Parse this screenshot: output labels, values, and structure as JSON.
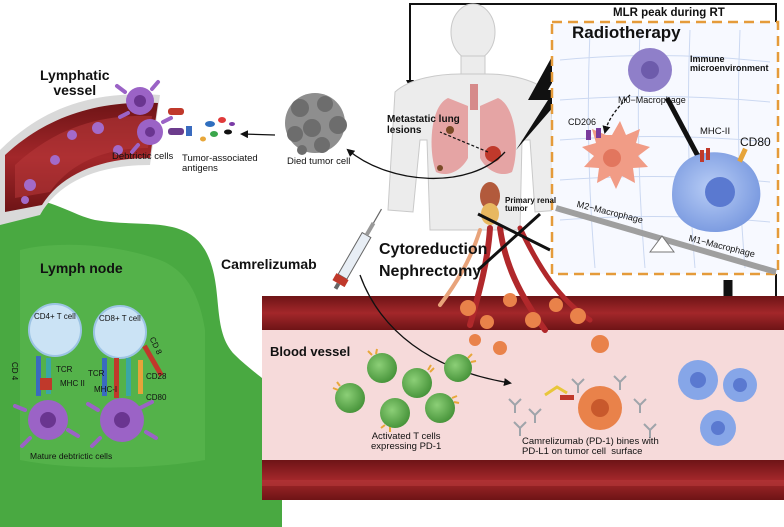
{
  "title_labels": {
    "mlr_peak": "MLR peak during RT",
    "radiotherapy": "Radiotherapy",
    "immune_microenvironment": "Immune\nmicroenvironment",
    "lymphatic_vessel": "Lymphatic\nvessel",
    "lymph_node": "Lymph node",
    "blood_vessel": "Blood vessel",
    "camrelizumab": "Camrelizumab",
    "cytoreduction": "Cytoreduction",
    "nephrectomy": "Nephrectomy"
  },
  "macrophages": {
    "m0": "M0−Macrophage",
    "m2": "M2−Macrophage",
    "m1": "M1−Macrophage",
    "cd206": "CD206",
    "mhc_ii": "MHC-II",
    "cd80": "CD80"
  },
  "body_labels": {
    "metastatic": "Metastatic lung\nlesions",
    "primary_renal": "Primary renal\ntumor"
  },
  "flow_labels": {
    "died_tumor_cell": "Died tumor cell",
    "tumor_antigens": "Tumor-associated\nantigens",
    "dendritic_cells": "Debtrictic cells"
  },
  "lymph_node_labels": {
    "cd4_t_cell": "CD4+ T cell",
    "cd8_t_cell": "CD8+ T cell",
    "cd4": "CD 4",
    "cd8": "CD 8",
    "tcr_1": "TCR",
    "tcr_2": "TCR",
    "mhc_ii": "MHC II",
    "mhc_i": "MHC-I",
    "cd28": "CD28",
    "cd80": "CD80",
    "mature_dc": "Mature debtrictic cells"
  },
  "blood_labels": {
    "activated_t": "Activated T cells\nexpressing PD-1",
    "binding": "Camrelizumab (PD-1) bines with\nPD-L1 on tumor cell  surface"
  },
  "colors": {
    "lymph_green": "#49a941",
    "vessel_red": "#8f1f22",
    "lumen_pink": "#f6dada",
    "orange_dash": "#e59b3a",
    "macrophage_blue": "#86a6e8",
    "m2_salmon": "#f19c86",
    "dendritic_purple": "#9b63c6",
    "tumor_orange": "#e9824a"
  }
}
